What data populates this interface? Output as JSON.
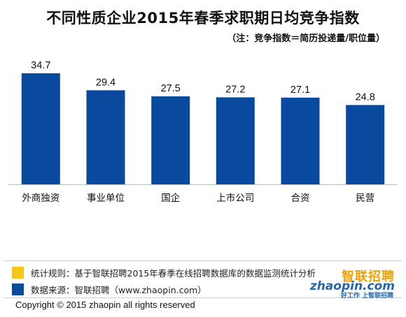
{
  "colors": {
    "bar": "#0a4a9e",
    "note1": "#f5c518",
    "note2": "#0a4a9e",
    "logo_orange": "#f4a000",
    "logo_blue": "#2566a8"
  },
  "chart_data": {
    "type": "bar",
    "title": "不同性质企业2015年春季求职期日均竞争指数",
    "subtitle": "（注：竞争指数＝简历投递量/职位量）",
    "categories": [
      "外商独资",
      "事业单位",
      "国企",
      "上市公司",
      "合资",
      "民营"
    ],
    "values": [
      34.7,
      29.4,
      27.5,
      27.2,
      27.1,
      24.8
    ],
    "xlabel": "",
    "ylabel": "",
    "grid": false,
    "legend": "none"
  },
  "notes": {
    "rule": "统计规则：基于智联招聘2015年春季在线招聘数据库的数据监测统计分析",
    "source": "数据来源：智联招聘（www.zhaopin.com）"
  },
  "logo": {
    "cn": "智联招聘",
    "en": "zhaopin.com",
    "tagline": "好工作  上智联招聘"
  },
  "copyright": "Copyright   ©   2015 zhaopin all rights reserved"
}
